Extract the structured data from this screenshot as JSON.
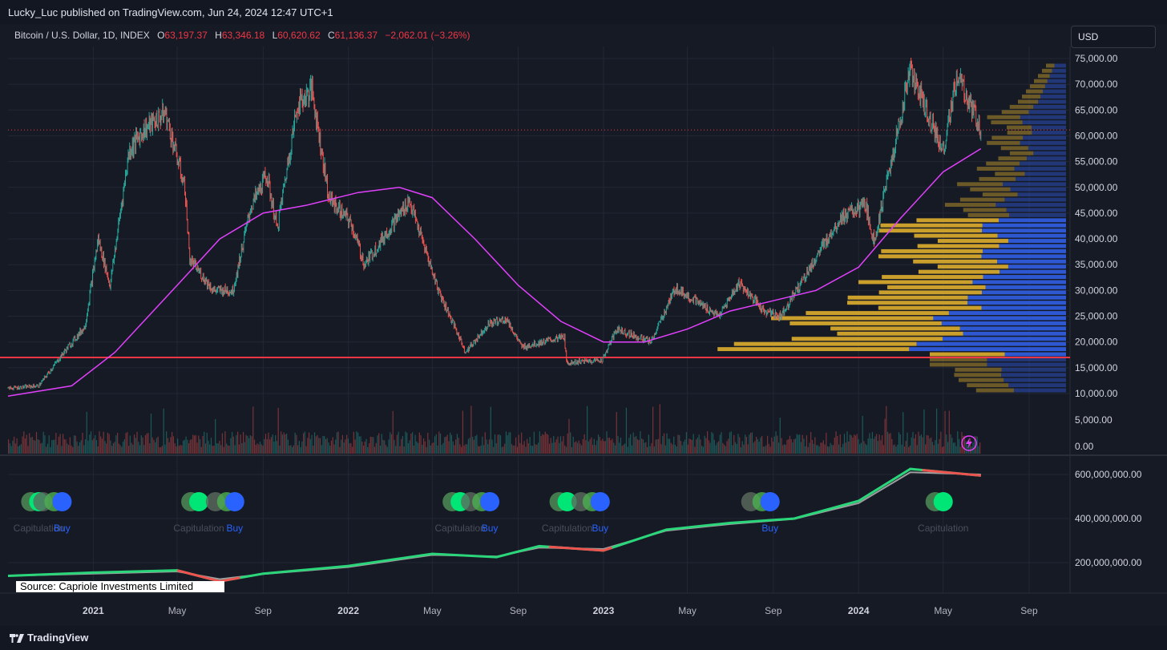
{
  "header": {
    "published": "Lucky_Luc published on TradingView.com, Jun 24, 2024 12:47 UTC+1"
  },
  "legend": {
    "symbol": "Bitcoin / U.S. Dollar, 1D, INDEX",
    "o_key": "O",
    "o_val": "63,197.37",
    "h_key": "H",
    "h_val": "63,346.18",
    "l_key": "L",
    "l_val": "60,620.62",
    "c_key": "C",
    "c_val": "61,136.37",
    "change": "−2,062.01 (−3.26%)"
  },
  "currency": "USD",
  "source_label": "Source: Capriole Investments Limited",
  "footer": {
    "brand": "TradingView"
  },
  "colors": {
    "up": "#26a69a",
    "down": "#ef5350",
    "ma": "#e040fb",
    "support": "#f23645",
    "vp_gold": "#d4a72c",
    "vp_blue": "#2f5cdb",
    "buy": "#2962ff",
    "green_dot": "#00e676"
  },
  "chart_data": [
    {
      "type": "line",
      "title": "Bitcoin / U.S. Dollar, 1D, INDEX",
      "x_tick_labels": [
        "2021",
        "May",
        "Sep",
        "2022",
        "May",
        "Sep",
        "2023",
        "May",
        "Sep",
        "2024",
        "May",
        "Sep"
      ],
      "y_tick_labels": [
        "75,000.00",
        "70,000.00",
        "65,000.00",
        "60,000.00",
        "55,000.00",
        "50,000.00",
        "45,000.00",
        "40,000.00",
        "35,000.00",
        "30,000.00",
        "25,000.00",
        "20,000.00",
        "15,000.00",
        "10,000.00",
        "5,000.00",
        "0.00"
      ],
      "ylim": [
        0,
        75000
      ],
      "current_price": 61136.37,
      "horizontal_support": 17000,
      "series": [
        {
          "kind": "close_price",
          "x": [
            "2020-09-01",
            "2020-10-15",
            "2020-11-20",
            "2020-12-20",
            "2021-01-08",
            "2021-01-25",
            "2021-02-21",
            "2021-03-13",
            "2021-04-14",
            "2021-05-12",
            "2021-05-19",
            "2021-06-22",
            "2021-07-20",
            "2021-08-14",
            "2021-09-06",
            "2021-09-21",
            "2021-10-20",
            "2021-11-10",
            "2021-12-04",
            "2022-01-05",
            "2022-01-24",
            "2022-03-29",
            "2022-05-10",
            "2022-06-18",
            "2022-07-20",
            "2022-08-15",
            "2022-09-06",
            "2022-11-06",
            "2022-11-09",
            "2022-12-30",
            "2023-01-20",
            "2023-03-10",
            "2023-04-14",
            "2023-06-15",
            "2023-07-14",
            "2023-08-18",
            "2023-09-11",
            "2023-10-24",
            "2023-12-05",
            "2024-01-11",
            "2024-01-23",
            "2024-02-28",
            "2024-03-14",
            "2024-05-01",
            "2024-05-21",
            "2024-06-24"
          ],
          "y": [
            11000,
            11500,
            18000,
            23000,
            40000,
            31000,
            57000,
            61000,
            64500,
            50000,
            36000,
            30000,
            30000,
            46000,
            52500,
            42000,
            66000,
            69000,
            48000,
            43000,
            35000,
            47500,
            30000,
            18000,
            23500,
            24500,
            19000,
            21000,
            16000,
            16500,
            22500,
            20000,
            30500,
            25000,
            31500,
            26000,
            25000,
            34500,
            44000,
            46500,
            39500,
            62000,
            73000,
            57000,
            71500,
            61136
          ]
        },
        {
          "kind": "moving_average",
          "x": [
            "2020-09-01",
            "2020-12-01",
            "2021-02-01",
            "2021-05-01",
            "2021-07-01",
            "2021-09-01",
            "2021-11-01",
            "2022-01-15",
            "2022-03-15",
            "2022-05-01",
            "2022-07-01",
            "2022-09-01",
            "2022-11-01",
            "2023-01-01",
            "2023-03-01",
            "2023-05-01",
            "2023-07-01",
            "2023-09-01",
            "2023-11-01",
            "2024-01-01",
            "2024-03-01",
            "2024-05-01",
            "2024-06-24"
          ],
          "y": [
            9500,
            11500,
            18000,
            31000,
            40000,
            45000,
            46500,
            49000,
            50000,
            48000,
            40000,
            31000,
            24000,
            20000,
            20000,
            22500,
            26000,
            28000,
            30000,
            34500,
            44000,
            53000,
            57500
          ]
        }
      ],
      "volume_profile_note": "horizontal volume-by-price histogram on right side, 10,000–74,000"
    },
    {
      "type": "line",
      "y_tick_labels": [
        "600,000,000.00",
        "400,000,000.00",
        "200,000,000.00"
      ],
      "ylim": [
        0,
        700000000
      ],
      "series": [
        {
          "kind": "upper_line",
          "x": [
            "2020-09-01",
            "2021-01-01",
            "2021-05-01",
            "2021-07-01",
            "2021-09-01",
            "2022-01-01",
            "2022-05-01",
            "2022-08-01",
            "2022-10-01",
            "2023-01-01",
            "2023-04-01",
            "2023-07-01",
            "2023-10-01",
            "2024-01-01",
            "2024-03-15",
            "2024-06-24"
          ],
          "y": [
            140000000,
            155000000,
            165000000,
            115000000,
            150000000,
            185000000,
            240000000,
            225000000,
            275000000,
            255000000,
            350000000,
            380000000,
            400000000,
            480000000,
            625000000,
            595000000
          ]
        },
        {
          "kind": "lower_line",
          "x": [
            "2020-09-01",
            "2021-01-01",
            "2021-05-01",
            "2021-07-01",
            "2021-09-01",
            "2022-01-01",
            "2022-05-01",
            "2022-08-01",
            "2022-10-01",
            "2023-01-01",
            "2023-04-01",
            "2023-07-01",
            "2023-10-01",
            "2024-01-01",
            "2024-03-15",
            "2024-06-24"
          ],
          "y": [
            140000000,
            150000000,
            160000000,
            125000000,
            148000000,
            180000000,
            235000000,
            228000000,
            268000000,
            262000000,
            345000000,
            375000000,
            398000000,
            470000000,
            610000000,
            600000000
          ]
        }
      ],
      "signals": [
        {
          "label": "Capitulation",
          "date": "2020-10-15"
        },
        {
          "label": "Buy",
          "date": "2020-11-15"
        },
        {
          "label": "Capitulation",
          "date": "2021-06-01"
        },
        {
          "label": "Buy",
          "date": "2021-07-20"
        },
        {
          "label": "Capitulation",
          "date": "2022-06-10"
        },
        {
          "label": "Buy",
          "date": "2022-07-20"
        },
        {
          "label": "Capitulation",
          "date": "2022-11-10"
        },
        {
          "label": "Buy",
          "date": "2022-12-25"
        },
        {
          "label": "Buy",
          "date": "2023-08-25"
        },
        {
          "label": "Capitulation",
          "date": "2024-05-01"
        }
      ]
    }
  ]
}
